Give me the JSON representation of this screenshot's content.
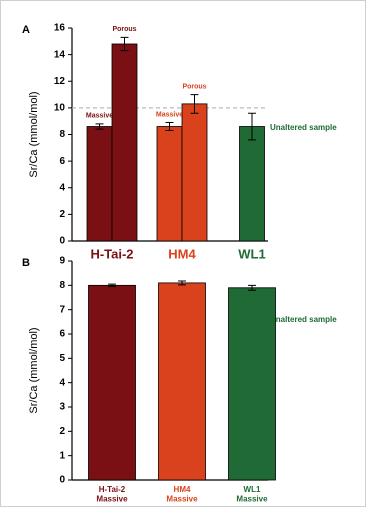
{
  "chart_data": [
    {
      "type": "bar",
      "panel": "A",
      "y_label": "Sr/Ca (mmol/mol)",
      "categories": [
        [
          "H-Tai-2"
        ],
        [
          "HM4"
        ],
        [
          "WL1"
        ]
      ],
      "colors": [
        "#7a1014",
        "#d9421c",
        "#1f6a35"
      ],
      "series": [
        {
          "name": "Massive",
          "values": [
            8.6,
            8.6,
            8.6
          ],
          "errors": [
            0.2,
            0.3,
            1.0
          ]
        },
        {
          "name": "Porous",
          "values": [
            14.8,
            10.3,
            null
          ],
          "errors": [
            0.5,
            0.7,
            null
          ]
        }
      ],
      "hline": 10,
      "annotation": "Unaltered sample",
      "ylim": [
        0,
        16
      ],
      "yticks": [
        0,
        2,
        4,
        6,
        8,
        10,
        12,
        14,
        16
      ]
    },
    {
      "type": "bar",
      "panel": "B",
      "y_label": "Sr/Ca (mmol/mol)",
      "categories": [
        [
          "H-Tai-2",
          "Massive"
        ],
        [
          "HM4",
          "Massive"
        ],
        [
          "WL1",
          "Massive"
        ]
      ],
      "colors": [
        "#7a1014",
        "#d9421c",
        "#1f6a35"
      ],
      "series": [
        {
          "values": [
            8.0,
            8.1,
            7.9
          ],
          "errors": [
            0.05,
            0.08,
            0.1
          ]
        }
      ],
      "annotation": "Unaltered sample",
      "ylim": [
        0,
        9
      ],
      "yticks": [
        0,
        1,
        2,
        3,
        4,
        5,
        6,
        7,
        8,
        9
      ]
    }
  ]
}
